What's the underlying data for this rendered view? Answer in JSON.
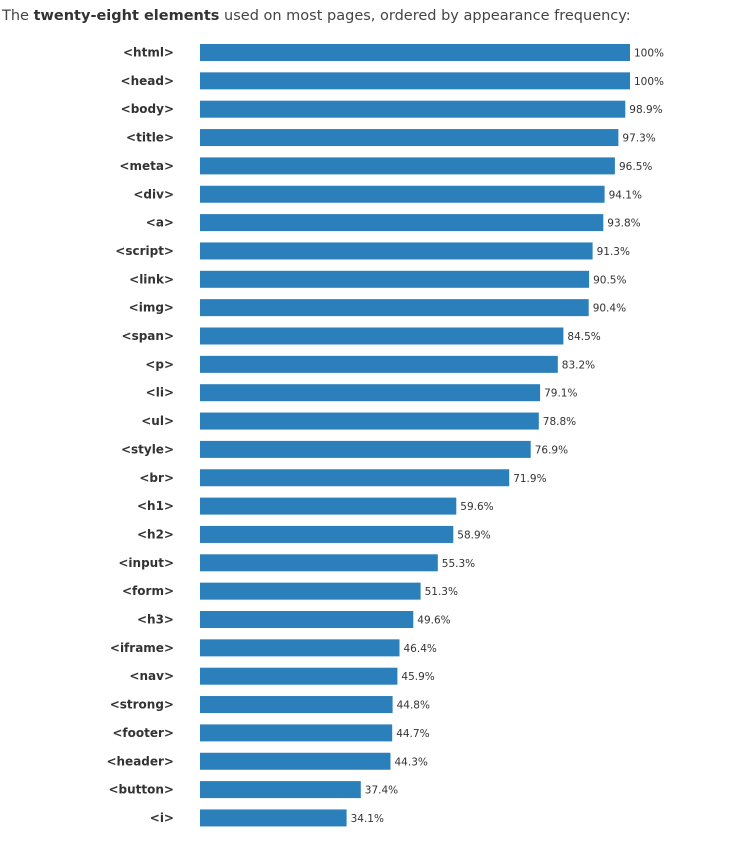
{
  "intro": {
    "before": "The ",
    "bold": "twenty-eight elements",
    "after": " used on most pages, ordered by appearance frequency:"
  },
  "chart_data": {
    "type": "bar",
    "orientation": "horizontal",
    "bar_color": "#2b7fbb",
    "unit": "%",
    "xlim": [
      0,
      100
    ],
    "grid": false,
    "categories": [
      "<html>",
      "<head>",
      "<body>",
      "<title>",
      "<meta>",
      "<div>",
      "<a>",
      "<script>",
      "<link>",
      "<img>",
      "<span>",
      "<p>",
      "<li>",
      "<ul>",
      "<style>",
      "<br>",
      "<h1>",
      "<h2>",
      "<input>",
      "<form>",
      "<h3>",
      "<iframe>",
      "<nav>",
      "<strong>",
      "<footer>",
      "<header>",
      "<button>",
      "<i>"
    ],
    "values": [
      100,
      100,
      98.9,
      97.3,
      96.5,
      94.1,
      93.8,
      91.3,
      90.5,
      90.4,
      84.5,
      83.2,
      79.1,
      78.8,
      76.9,
      71.9,
      59.6,
      58.9,
      55.3,
      51.3,
      49.6,
      46.4,
      45.9,
      44.8,
      44.7,
      44.3,
      37.4,
      34.1
    ],
    "value_labels": [
      "100%",
      "100%",
      "98.9%",
      "97.3%",
      "96.5%",
      "94.1%",
      "93.8%",
      "91.3%",
      "90.5%",
      "90.4%",
      "84.5%",
      "83.2%",
      "79.1%",
      "78.8%",
      "76.9%",
      "71.9%",
      "59.6%",
      "58.9%",
      "55.3%",
      "51.3%",
      "49.6%",
      "46.4%",
      "45.9%",
      "44.8%",
      "44.7%",
      "44.3%",
      "37.4%",
      "34.1%"
    ]
  }
}
